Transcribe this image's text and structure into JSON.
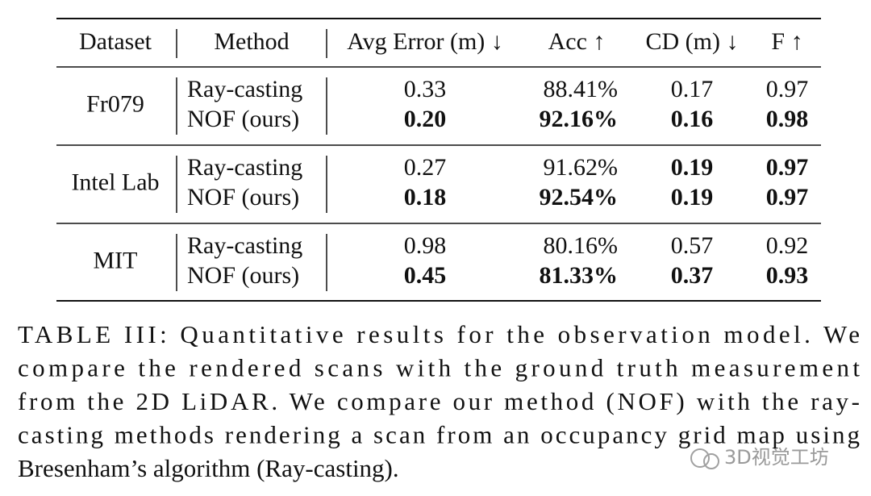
{
  "table": {
    "header": [
      "Dataset",
      "Method",
      "Avg Error (m) ↓",
      "Acc ↑",
      "CD (m) ↓",
      "F ↑"
    ],
    "groups": [
      {
        "dataset": "Fr079",
        "rows": [
          {
            "method": "Ray-casting",
            "cells": [
              "0.33",
              "88.41%",
              "0.17",
              "0.97"
            ],
            "bold": [
              false,
              false,
              false,
              false
            ]
          },
          {
            "method": "NOF (ours)",
            "cells": [
              "0.20",
              "92.16%",
              "0.16",
              "0.98"
            ],
            "bold": [
              true,
              true,
              true,
              true
            ]
          }
        ]
      },
      {
        "dataset": "Intel Lab",
        "rows": [
          {
            "method": "Ray-casting",
            "cells": [
              "0.27",
              "91.62%",
              "0.19",
              "0.97"
            ],
            "bold": [
              false,
              false,
              true,
              true
            ]
          },
          {
            "method": "NOF (ours)",
            "cells": [
              "0.18",
              "92.54%",
              "0.19",
              "0.97"
            ],
            "bold": [
              true,
              true,
              true,
              true
            ]
          }
        ]
      },
      {
        "dataset": "MIT",
        "rows": [
          {
            "method": "Ray-casting",
            "cells": [
              "0.98",
              "80.16%",
              "0.57",
              "0.92"
            ],
            "bold": [
              false,
              false,
              false,
              false
            ]
          },
          {
            "method": "NOF (ours)",
            "cells": [
              "0.45",
              "81.33%",
              "0.37",
              "0.93"
            ],
            "bold": [
              true,
              true,
              true,
              true
            ]
          }
        ]
      }
    ]
  },
  "caption": {
    "lines": [
      "TABLE III: Quantitative results for the observation model. We",
      "compare the rendered scans with the ground truth measurement",
      "from the 2D LiDAR. We compare our method (NOF) with the ray-",
      "casting methods rendering a scan from an occupancy grid map using",
      "Bresenham’s algorithm (Ray-casting)."
    ]
  },
  "watermark": "3D视觉工坊"
}
